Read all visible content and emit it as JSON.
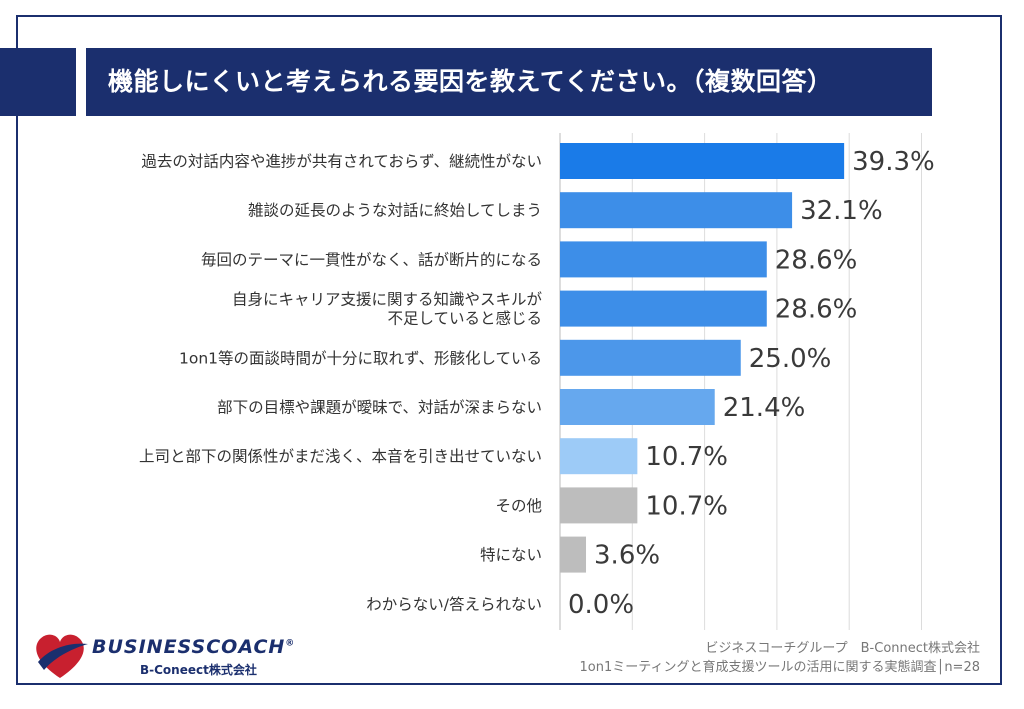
{
  "title": "機能しにくいと考えられる要因を教えてください。（複数回答）",
  "colors": {
    "navy": "#1b2f6e",
    "bar_palette": [
      "#1a7be8",
      "#3d8ee8",
      "#3d8ee8",
      "#3d8ee8",
      "#4c97ea",
      "#66a8ee",
      "#9dcbf7",
      "#bdbdbd",
      "#bdbdbd",
      "#bdbdbd"
    ]
  },
  "chart_data": {
    "type": "bar",
    "orientation": "horizontal",
    "categories": [
      [
        "過去の対話内容や進捗が共有されておらず、継続性がない"
      ],
      [
        "雑談の延長のような対話に終始してしまう"
      ],
      [
        "毎回のテーマに一貫性がなく、話が断片的になる"
      ],
      [
        "自身にキャリア支援に関する知識やスキルが",
        "不足していると感じる"
      ],
      [
        "1on1等の面談時間が十分に取れず、形骸化している"
      ],
      [
        "部下の目標や課題が曖昧で、対話が深まらない"
      ],
      [
        "上司と部下の関係性がまだ浅く、本音を引き出せていない"
      ],
      [
        "その他"
      ],
      [
        "特にない"
      ],
      [
        "わからない/答えられない"
      ]
    ],
    "values": [
      39.3,
      32.1,
      28.6,
      28.6,
      25.0,
      21.4,
      10.7,
      10.7,
      3.6,
      0.0
    ],
    "value_labels": [
      "39.3%",
      "32.1%",
      "28.6%",
      "28.6%",
      "25.0%",
      "21.4%",
      "10.7%",
      "10.7%",
      "3.6%",
      "0.0%"
    ],
    "xlim": [
      0,
      50
    ],
    "grid": true
  },
  "logo": {
    "name": "BUSINESSCOACH",
    "registered": "®",
    "company": "B-Coneect株式会社"
  },
  "footer": {
    "line1": "ビジネスコーチグループ　B-Connect株式会社",
    "line2": "1on1ミーティングと育成支援ツールの活用に関する実態調査│n=28"
  }
}
